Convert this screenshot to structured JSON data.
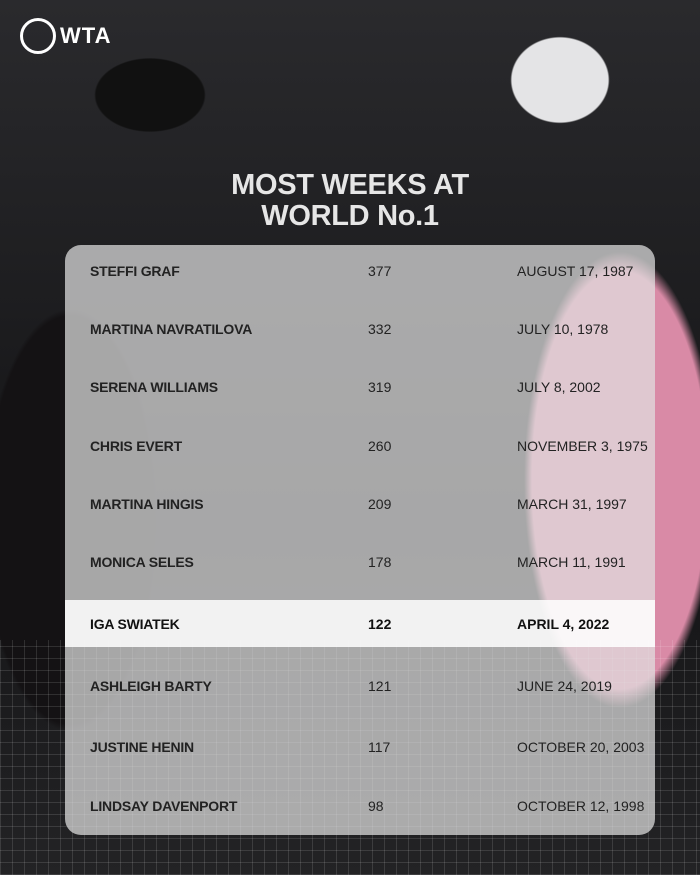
{
  "logo": {
    "text": "WTA"
  },
  "title": {
    "line1": "MOST WEEKS AT",
    "line2": "WORLD No.1"
  },
  "rows": [
    {
      "name": "STEFFI GRAF",
      "weeks": "377",
      "date": "AUGUST 17, 1987"
    },
    {
      "name": "MARTINA NAVRATILOVA",
      "weeks": "332",
      "date": "JULY 10, 1978"
    },
    {
      "name": "SERENA WILLIAMS",
      "weeks": "319",
      "date": "JULY 8, 2002"
    },
    {
      "name": "CHRIS EVERT",
      "weeks": "260",
      "date": "NOVEMBER 3, 1975"
    },
    {
      "name": "MARTINA HINGIS",
      "weeks": "209",
      "date": "MARCH 31, 1997"
    },
    {
      "name": "MONICA SELES",
      "weeks": "178",
      "date": "MARCH 11, 1991"
    },
    {
      "name": "IGA SWIATEK",
      "weeks": "122",
      "date": "APRIL 4, 2022",
      "highlighted": true
    },
    {
      "name": "ASHLEIGH BARTY",
      "weeks": "121",
      "date": "JUNE 24, 2019"
    },
    {
      "name": "JUSTINE HENIN",
      "weeks": "117",
      "date": "OCTOBER 20, 2003"
    },
    {
      "name": "LINDSAY DAVENPORT",
      "weeks": "98",
      "date": "OCTOBER 12, 1998"
    }
  ]
}
